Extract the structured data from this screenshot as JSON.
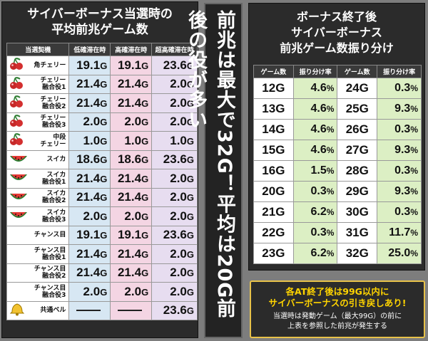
{
  "left": {
    "title_line1": "サイバーボーナス当選時の",
    "title_line2": "平均前兆ゲーム数",
    "headers": [
      "当選契機",
      "低確滞在時",
      "高確滞在時",
      "超高確滞在時"
    ],
    "rows": [
      {
        "label": "角チェリー",
        "icon": "cherry-icon",
        "low": "19.1",
        "high": "19.1",
        "super": "23.6"
      },
      {
        "label": "チェリー\n融合役1",
        "icon": "cherry-icon",
        "low": "21.4",
        "high": "21.4",
        "super": "2.0"
      },
      {
        "label": "チェリー\n融合役2",
        "icon": "cherry-icon",
        "low": "21.4",
        "high": "21.4",
        "super": "2.0"
      },
      {
        "label": "チェリー\n融合役3",
        "icon": "cherry-icon",
        "low": "2.0",
        "high": "2.0",
        "super": "2.0"
      },
      {
        "label": "中段\nチェリー",
        "icon": "cherry-icon",
        "low": "1.0",
        "high": "1.0",
        "super": "1.0"
      },
      {
        "label": "スイカ",
        "icon": "watermelon-icon",
        "low": "18.6",
        "high": "18.6",
        "super": "23.6"
      },
      {
        "label": "スイカ\n融合役1",
        "icon": "watermelon-icon",
        "low": "21.4",
        "high": "21.4",
        "super": "2.0"
      },
      {
        "label": "スイカ\n融合役2",
        "icon": "watermelon-icon",
        "low": "21.4",
        "high": "21.4",
        "super": "2.0"
      },
      {
        "label": "スイカ\n融合役3",
        "icon": "watermelon-icon",
        "low": "2.0",
        "high": "2.0",
        "super": "2.0"
      },
      {
        "label": "チャンス目",
        "icon": "",
        "low": "19.1",
        "high": "19.1",
        "super": "23.6"
      },
      {
        "label": "チャンス目\n融合役1",
        "icon": "",
        "low": "21.4",
        "high": "21.4",
        "super": "2.0"
      },
      {
        "label": "チャンス目\n融合役2",
        "icon": "",
        "low": "21.4",
        "high": "21.4",
        "super": "2.0"
      },
      {
        "label": "チャンス目\n融合役3",
        "icon": "",
        "low": "2.0",
        "high": "2.0",
        "super": "2.0"
      },
      {
        "label": "共通ベル",
        "icon": "bell-icon",
        "low": "",
        "high": "",
        "super": "23.6"
      }
    ],
    "unit": "G"
  },
  "banner": {
    "text": "前兆は最大で32G！平均は20G前後の役が多い"
  },
  "right": {
    "title_line1": "ボーナス終了後",
    "title_line2": "サイバーボーナス",
    "title_line3": "前兆ゲーム数振り分け",
    "headers": [
      "ゲーム数",
      "振り分け率",
      "ゲーム数",
      "振り分け率"
    ],
    "rows": [
      {
        "g1": "12G",
        "r1": "4.6",
        "g2": "24G",
        "r2": "0.3"
      },
      {
        "g1": "13G",
        "r1": "4.6",
        "g2": "25G",
        "r2": "9.3"
      },
      {
        "g1": "14G",
        "r1": "4.6",
        "g2": "26G",
        "r2": "0.3"
      },
      {
        "g1": "15G",
        "r1": "4.6",
        "g2": "27G",
        "r2": "9.3"
      },
      {
        "g1": "16G",
        "r1": "1.5",
        "g2": "28G",
        "r2": "0.3"
      },
      {
        "g1": "20G",
        "r1": "0.3",
        "g2": "29G",
        "r2": "9.3"
      },
      {
        "g1": "21G",
        "r1": "6.2",
        "g2": "30G",
        "r2": "0.3"
      },
      {
        "g1": "22G",
        "r1": "0.3",
        "g2": "31G",
        "r2": "11.7"
      },
      {
        "g1": "23G",
        "r1": "6.2",
        "g2": "32G",
        "r2": "25.0"
      }
    ],
    "pct": "%"
  },
  "note": {
    "yellow_line1": "各AT終了後は99G以内に",
    "yellow_line2": "サイバーボーナスの引き戻しあり!",
    "white_line1": "当選時は発動ゲーム（最大99G）の前に",
    "white_line2": "上表を参照した前兆が発生する"
  },
  "colors": {
    "low_bg": "#d7e7f3",
    "high_bg": "#f4d5e3",
    "super_bg": "#e7ddf0",
    "rate_bg": "#dcefc4",
    "note_yellow": "#ffd400"
  }
}
